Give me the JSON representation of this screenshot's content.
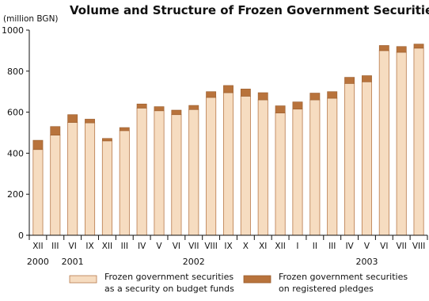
{
  "chart_data": {
    "type": "bar",
    "stacked": true,
    "title": "Volume and Structure of Frozen Government Securities",
    "unit_label": "(million BGN)",
    "ylim": [
      0,
      1000
    ],
    "yticks": [
      0,
      200,
      400,
      600,
      800,
      1000
    ],
    "grid": false,
    "categories": [
      "XII",
      "III",
      "VI",
      "IX",
      "XII",
      "III",
      "IV",
      "V",
      "VI",
      "VII",
      "VIII",
      "IX",
      "X",
      "XI",
      "XII",
      "I",
      "II",
      "III",
      "IV",
      "V",
      "VI",
      "VII",
      "VIII"
    ],
    "year_labels": [
      {
        "label": "2000",
        "index": 0
      },
      {
        "label": "2001",
        "index": 2
      },
      {
        "label": "2002",
        "index": 9
      },
      {
        "label": "2003",
        "index": 19
      }
    ],
    "series": [
      {
        "name": "Frozen government securities as a security on budget funds",
        "legend_lines": [
          "Frozen government securities",
          "as a security on budget funds"
        ],
        "color": "#f6dcc0",
        "stroke": "#b87a4b",
        "values": [
          418,
          488,
          550,
          548,
          460,
          510,
          620,
          607,
          588,
          613,
          672,
          695,
          678,
          660,
          596,
          615,
          660,
          668,
          740,
          748,
          900,
          892,
          912
        ]
      },
      {
        "name": "Frozen government securities on registered pledges",
        "legend_lines": [
          "Frozen government securities",
          "on registered pledges"
        ],
        "color": "#b8733c",
        "stroke": "#9a5e2e",
        "values": [
          45,
          42,
          38,
          18,
          12,
          15,
          20,
          20,
          22,
          20,
          28,
          35,
          35,
          35,
          35,
          35,
          33,
          32,
          30,
          30,
          25,
          28,
          20
        ]
      }
    ]
  }
}
